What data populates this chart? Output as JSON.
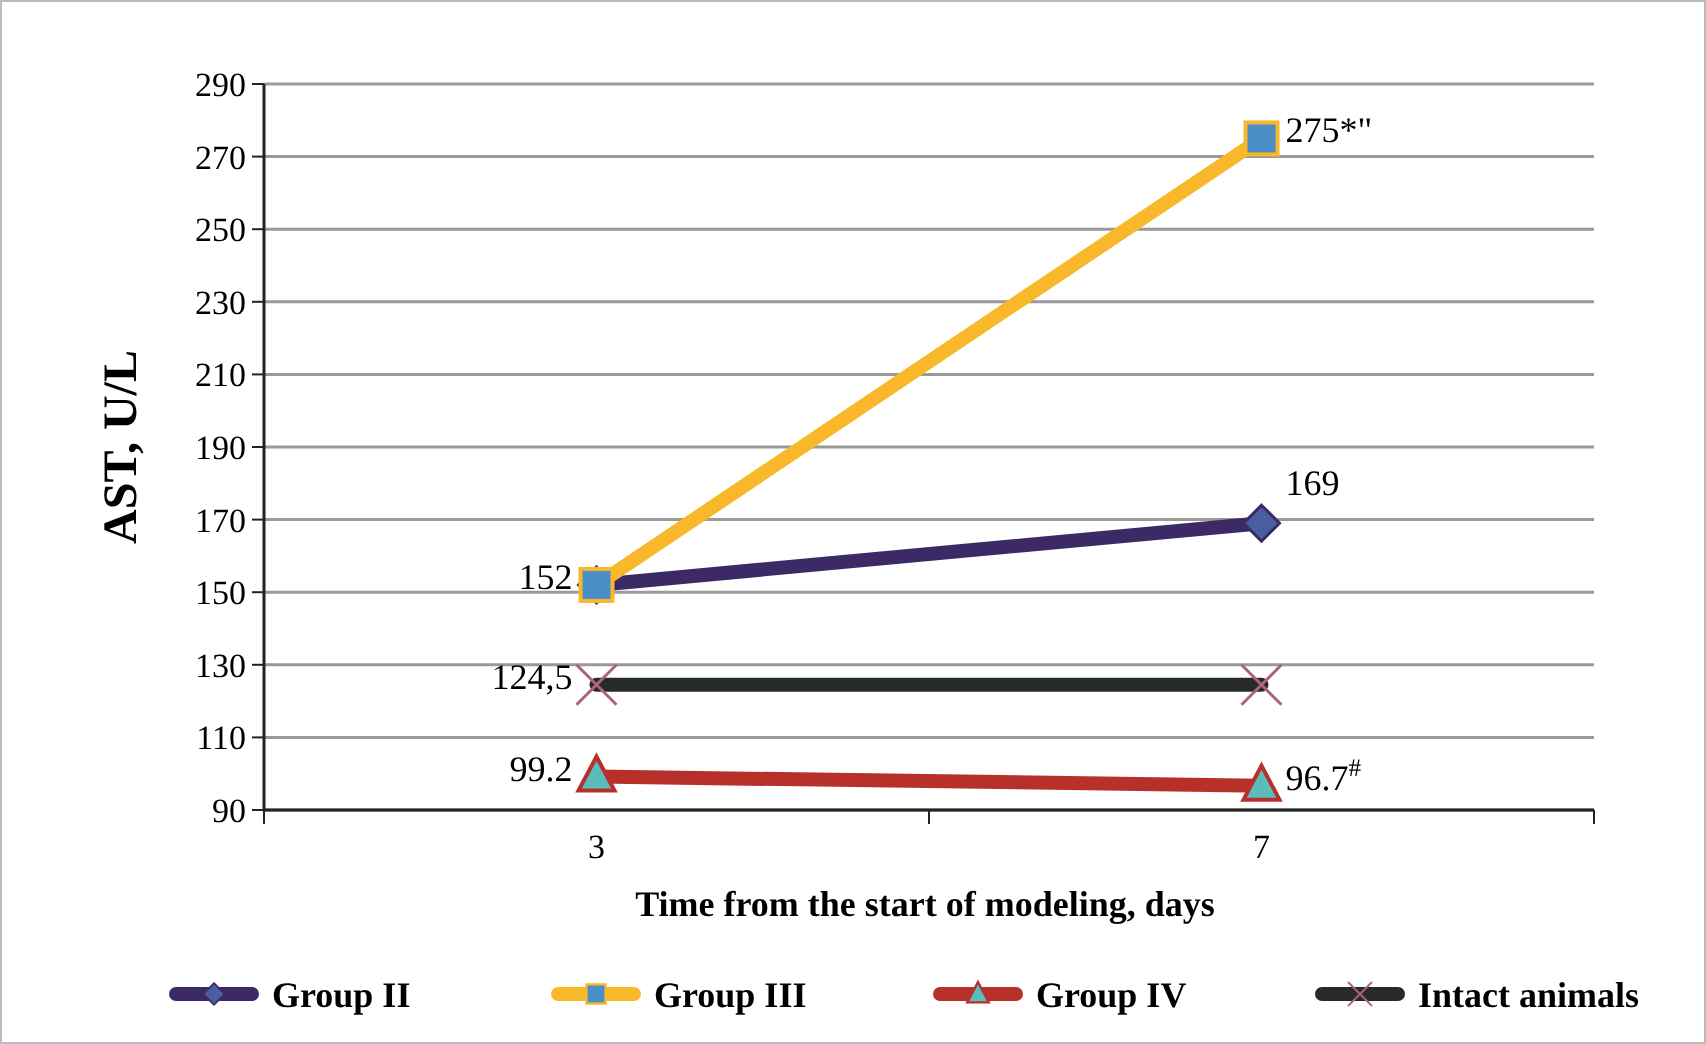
{
  "chart_data": {
    "type": "line",
    "xlabel": "Time from the start of modeling, days",
    "ylabel": "AST, U/L",
    "categories": [
      "3",
      "7"
    ],
    "ylim": [
      90,
      290
    ],
    "yticks": [
      90,
      110,
      130,
      150,
      170,
      190,
      210,
      230,
      250,
      270,
      290
    ],
    "grid": "y",
    "legend": "bottom",
    "series": [
      {
        "name": "Group II",
        "color": "#3b2a66",
        "marker": "diamond",
        "values": [
          152,
          169
        ],
        "value_labels": [
          null,
          "169"
        ]
      },
      {
        "name": "Group III",
        "color": "#f9b82a",
        "marker": "square",
        "values": [
          152,
          275
        ],
        "value_labels": [
          "152",
          "275*\""
        ]
      },
      {
        "name": "Group IV",
        "color": "#b8302a",
        "marker": "triangle",
        "values": [
          99.2,
          96.7
        ],
        "value_labels": [
          "99.2",
          "96.7$^{#}$"
        ]
      },
      {
        "name": "Intact animals",
        "color": "#262a28",
        "marker": "cross",
        "values": [
          124.5,
          124.5
        ],
        "value_labels": [
          "124,5",
          null
        ]
      }
    ]
  }
}
